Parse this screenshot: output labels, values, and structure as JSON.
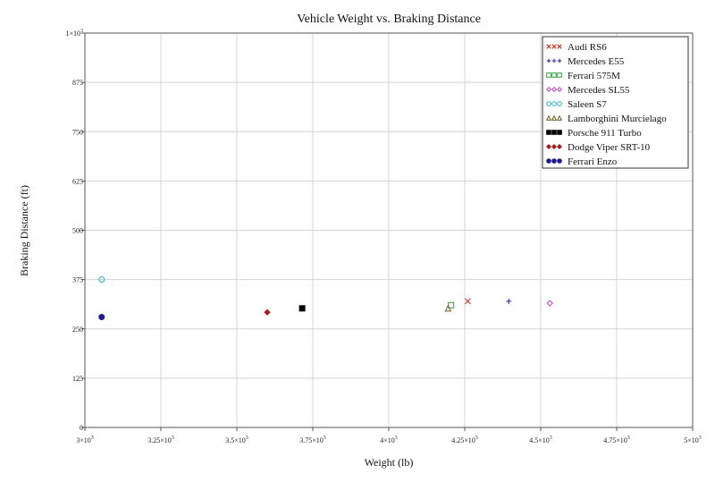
{
  "chart_data": {
    "type": "scatter",
    "title": "Vehicle Weight vs. Braking Distance",
    "xlabel": "Weight (lb)",
    "ylabel": "Braking Distance (ft)",
    "xlim": [
      3000,
      5000
    ],
    "ylim": [
      0,
      1000
    ],
    "x_ticks": [
      {
        "value": 3000,
        "mantissa": "3",
        "exp": "3"
      },
      {
        "value": 3250,
        "mantissa": "3.25",
        "exp": "3"
      },
      {
        "value": 3500,
        "mantissa": "3.5",
        "exp": "3"
      },
      {
        "value": 3750,
        "mantissa": "3.75",
        "exp": "3"
      },
      {
        "value": 4000,
        "mantissa": "4",
        "exp": "3"
      },
      {
        "value": 4250,
        "mantissa": "4.25",
        "exp": "3"
      },
      {
        "value": 4500,
        "mantissa": "4.5",
        "exp": "3"
      },
      {
        "value": 4750,
        "mantissa": "4.75",
        "exp": "3"
      },
      {
        "value": 5000,
        "mantissa": "5",
        "exp": "3"
      }
    ],
    "y_ticks": [
      {
        "value": 0,
        "label": "0"
      },
      {
        "value": 125,
        "label": "125"
      },
      {
        "value": 250,
        "label": "250"
      },
      {
        "value": 375,
        "label": "375"
      },
      {
        "value": 500,
        "label": "500"
      },
      {
        "value": 625,
        "label": "625"
      },
      {
        "value": 750,
        "label": "750"
      },
      {
        "value": 875,
        "label": "875"
      },
      {
        "value": 1000,
        "mantissa": "1",
        "exp": "3"
      }
    ],
    "grid": true,
    "legend_position": "top-right",
    "series": [
      {
        "name": "Audi RS6",
        "marker": "x",
        "color": "#c0392b",
        "points": [
          [
            4260,
            320
          ]
        ]
      },
      {
        "name": "Mercedes E55",
        "marker": "plus",
        "color": "#3b2a9e",
        "points": [
          [
            4395,
            320
          ]
        ]
      },
      {
        "name": "Ferrari 575M",
        "marker": "square-open",
        "color": "#2ea043",
        "points": [
          [
            4205,
            310
          ]
        ]
      },
      {
        "name": "Mercedes SL55",
        "marker": "diamond-open",
        "color": "#c040c0",
        "points": [
          [
            4530,
            315
          ]
        ]
      },
      {
        "name": "Saleen S7",
        "marker": "circle-open",
        "color": "#2ab0c0",
        "points": [
          [
            3055,
            375
          ]
        ]
      },
      {
        "name": "Lamborghini Murcielago",
        "marker": "triangle-open",
        "color": "#6b5a1e",
        "points": [
          [
            4195,
            302
          ]
        ]
      },
      {
        "name": "Porsche 911 Turbo",
        "marker": "square-filled",
        "color": "#000000",
        "points": [
          [
            3715,
            302
          ]
        ]
      },
      {
        "name": "Dodge Viper SRT-10",
        "marker": "diamond-filled",
        "color": "#a02020",
        "points": [
          [
            3600,
            292
          ]
        ]
      },
      {
        "name": "Ferrari Enzo",
        "marker": "circle-filled",
        "color": "#1a1a8c",
        "points": [
          [
            3055,
            280
          ]
        ]
      }
    ]
  }
}
